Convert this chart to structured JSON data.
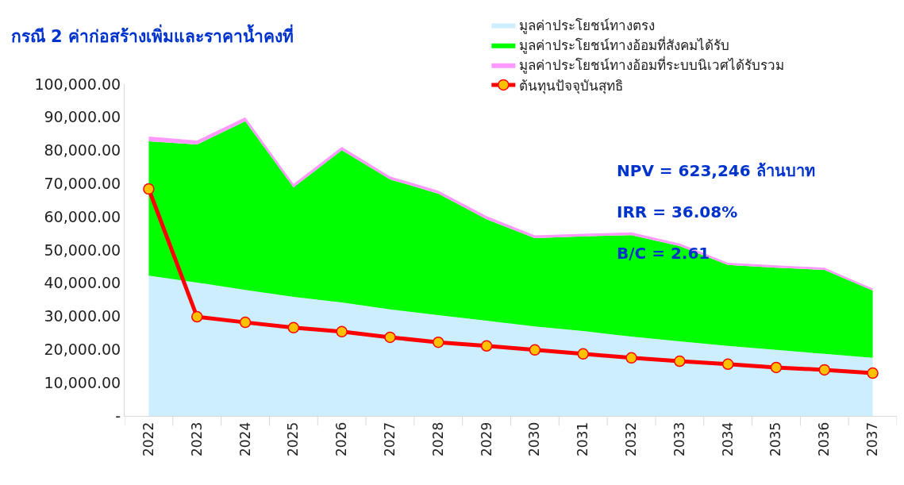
{
  "chart_data": {
    "type": "area",
    "stacked": true,
    "title": "กรณี 2 ค่าก่อสร้างเพิ่มและราคาน้ำคงที่",
    "categories": [
      "2022",
      "2023",
      "2024",
      "2025",
      "2026",
      "2027",
      "2028",
      "2029",
      "2030",
      "2031",
      "2032",
      "2033",
      "2034",
      "2035",
      "2036",
      "2037"
    ],
    "series": [
      {
        "name": "มูลค่าประโยชน์ทางตรง",
        "color": "#cceeff",
        "values": [
          42300,
          40200,
          38000,
          35900,
          34200,
          32100,
          30400,
          28700,
          27000,
          25600,
          23900,
          22500,
          21100,
          19900,
          18700,
          17500
        ]
      },
      {
        "name": "มูลค่าประโยชน์ทางอ้อมที่สังคมได้รับ",
        "color": "#00ff00",
        "values": [
          40500,
          41600,
          50800,
          33000,
          45900,
          39200,
          36600,
          30600,
          26600,
          28500,
          30600,
          28700,
          24400,
          24800,
          25300,
          20300
        ]
      },
      {
        "name": "มูลค่าประโยชน์ทางอ้อมที่ระบบนิเวศได้รับรวม",
        "color": "#ff99ff",
        "values": [
          1400,
          1200,
          1200,
          1000,
          1000,
          900,
          900,
          900,
          800,
          800,
          800,
          800,
          700,
          700,
          700,
          600
        ]
      },
      {
        "name": "ต้นทุนปัจจุบันสุทธิ",
        "type": "line",
        "color": "#ff0000",
        "marker": "circle",
        "values": [
          68400,
          29900,
          28200,
          26600,
          25400,
          23700,
          22200,
          21100,
          19900,
          18700,
          17500,
          16500,
          15600,
          14600,
          13900,
          12900
        ]
      }
    ],
    "ylim": [
      0,
      100000
    ],
    "yticks": [
      {
        "value": 0,
        "label": "-"
      },
      {
        "value": 10000,
        "label": "10,000.00"
      },
      {
        "value": 20000,
        "label": "20,000.00"
      },
      {
        "value": 30000,
        "label": "30,000.00"
      },
      {
        "value": 40000,
        "label": "40,000.00"
      },
      {
        "value": 50000,
        "label": "50,000.00"
      },
      {
        "value": 60000,
        "label": "60,000.00"
      },
      {
        "value": 70000,
        "label": "70,000.00"
      },
      {
        "value": 80000,
        "label": "80,000.00"
      },
      {
        "value": 90000,
        "label": "90,000.00"
      },
      {
        "value": 100000,
        "label": "100,000.00"
      }
    ],
    "legend": "top right",
    "annotations": [
      "NPV = 623,246 ล้านบาท",
      "IRR = 36.08%",
      "B/C = 2.61"
    ]
  }
}
